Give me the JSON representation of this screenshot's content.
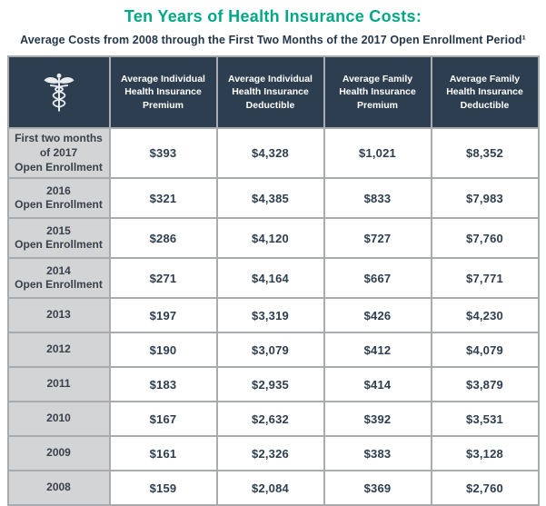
{
  "title": "Ten Years of Health Insurance Costs:",
  "subtitle": "Average Costs from 2008 through the First Two Months of the 2017 Open Enrollment Period¹",
  "colors": {
    "title_accent": "#00a887",
    "header_bg": "#2d3e50",
    "row_label_bg": "#d3d4d6",
    "grid_border": "#a8acaf",
    "value_text": "#2d3e50"
  },
  "icons": {
    "header_icon": "caduceus-icon"
  },
  "chart_data": {
    "type": "table",
    "columns": [
      "Average Individual\nHealth Insurance\nPremium",
      "Average Individual\nHealth Insurance\nDeductible",
      "Average Family\nHealth Insurance\nPremium",
      "Average Family\nHealth Insurance\nDeductible"
    ],
    "rows": [
      {
        "label": "First two months\nof 2017\nOpen Enrollment",
        "values": [
          "$393",
          "$4,328",
          "$1,021",
          "$8,352"
        ]
      },
      {
        "label": "2016\nOpen Enrollment",
        "values": [
          "$321",
          "$4,385",
          "$833",
          "$7,983"
        ]
      },
      {
        "label": "2015\nOpen Enrollment",
        "values": [
          "$286",
          "$4,120",
          "$727",
          "$7,760"
        ]
      },
      {
        "label": "2014\nOpen Enrollment",
        "values": [
          "$271",
          "$4,164",
          "$667",
          "$7,771"
        ]
      },
      {
        "label": "2013",
        "values": [
          "$197",
          "$3,319",
          "$426",
          "$4,230"
        ]
      },
      {
        "label": "2012",
        "values": [
          "$190",
          "$3,079",
          "$412",
          "$4,079"
        ]
      },
      {
        "label": "2011",
        "values": [
          "$183",
          "$2,935",
          "$414",
          "$3,879"
        ]
      },
      {
        "label": "2010",
        "values": [
          "$167",
          "$2,632",
          "$392",
          "$3,531"
        ]
      },
      {
        "label": "2009",
        "values": [
          "$161",
          "$2,326",
          "$383",
          "$3,128"
        ]
      },
      {
        "label": "2008",
        "values": [
          "$159",
          "$2,084",
          "$369",
          "$2,760"
        ]
      }
    ]
  }
}
